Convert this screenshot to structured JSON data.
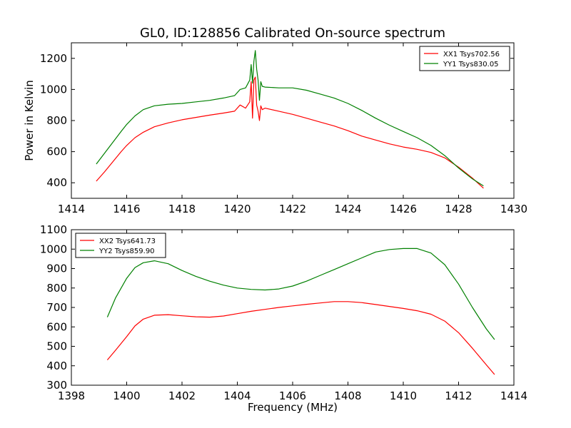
{
  "page_title": "GL0, ID:128856 Calibrated On-source spectrum",
  "xlabel": "Frequency (MHz)",
  "colors": {
    "red": "#ff0000",
    "green": "#008000"
  },
  "chart_data": [
    {
      "type": "line",
      "title": "GL0, ID:128856 Calibrated On-source spectrum",
      "xlabel": "",
      "ylabel": "Power in Kelvin",
      "xlim": [
        1414,
        1430
      ],
      "ylim": [
        300,
        1300
      ],
      "xticks": [
        1414,
        1416,
        1418,
        1420,
        1422,
        1424,
        1426,
        1428,
        1430
      ],
      "yticks": [
        400,
        600,
        800,
        1000,
        1200
      ],
      "legend_position": "top-right",
      "grid": false,
      "series": [
        {
          "name": "XX1 Tsys702.56",
          "color": "#ff0000",
          "x": [
            1414.9,
            1415.2,
            1415.5,
            1415.8,
            1416.0,
            1416.3,
            1416.6,
            1417.0,
            1417.5,
            1418.0,
            1418.5,
            1419.0,
            1419.5,
            1419.9,
            1420.1,
            1420.3,
            1420.45,
            1420.5,
            1420.55,
            1420.6,
            1420.65,
            1420.7,
            1420.75,
            1420.8,
            1420.85,
            1420.9,
            1421.0,
            1421.5,
            1422.0,
            1422.5,
            1423.0,
            1423.5,
            1424.0,
            1424.5,
            1425.0,
            1425.5,
            1426.0,
            1426.5,
            1427.0,
            1427.5,
            1428.0,
            1428.5,
            1428.9
          ],
          "y": [
            410,
            470,
            535,
            600,
            640,
            690,
            725,
            760,
            785,
            805,
            820,
            835,
            848,
            860,
            900,
            880,
            920,
            1050,
            815,
            1060,
            1080,
            900,
            860,
            800,
            895,
            870,
            880,
            860,
            840,
            815,
            790,
            765,
            735,
            700,
            675,
            650,
            630,
            615,
            595,
            560,
            500,
            430,
            365
          ]
        },
        {
          "name": "YY1 Tsys830.05",
          "color": "#008000",
          "x": [
            1414.9,
            1415.2,
            1415.5,
            1415.8,
            1416.0,
            1416.3,
            1416.6,
            1417.0,
            1417.5,
            1418.0,
            1418.5,
            1419.0,
            1419.5,
            1419.9,
            1420.1,
            1420.3,
            1420.45,
            1420.5,
            1420.55,
            1420.6,
            1420.65,
            1420.7,
            1420.75,
            1420.8,
            1420.85,
            1420.9,
            1421.0,
            1421.5,
            1422.0,
            1422.5,
            1423.0,
            1423.5,
            1424.0,
            1424.5,
            1425.0,
            1425.5,
            1426.0,
            1426.5,
            1427.0,
            1427.5,
            1428.0,
            1428.5,
            1428.9
          ],
          "y": [
            520,
            590,
            660,
            730,
            775,
            830,
            870,
            895,
            905,
            910,
            920,
            930,
            945,
            960,
            1000,
            1010,
            1060,
            1160,
            1040,
            1180,
            1250,
            1130,
            1060,
            930,
            1050,
            1020,
            1015,
            1010,
            1010,
            995,
            970,
            945,
            910,
            865,
            815,
            770,
            730,
            690,
            640,
            575,
            495,
            425,
            380
          ]
        }
      ]
    },
    {
      "type": "line",
      "title": "",
      "xlabel": "Frequency (MHz)",
      "ylabel": "",
      "xlim": [
        1398,
        1414
      ],
      "ylim": [
        300,
        1100
      ],
      "xticks": [
        1398,
        1400,
        1402,
        1404,
        1406,
        1408,
        1410,
        1412,
        1414
      ],
      "yticks": [
        300,
        400,
        500,
        600,
        700,
        800,
        900,
        1000,
        1100
      ],
      "legend_position": "top-left",
      "grid": false,
      "series": [
        {
          "name": "XX2 Tsys641.73",
          "color": "#ff0000",
          "x": [
            1399.3,
            1399.6,
            1400.0,
            1400.3,
            1400.6,
            1401.0,
            1401.5,
            1402.0,
            1402.5,
            1403.0,
            1403.5,
            1404.0,
            1404.5,
            1405.0,
            1405.5,
            1406.0,
            1406.5,
            1407.0,
            1407.5,
            1408.0,
            1408.5,
            1409.0,
            1409.5,
            1410.0,
            1410.5,
            1411.0,
            1411.5,
            1412.0,
            1412.5,
            1413.0,
            1413.3
          ],
          "y": [
            430,
            480,
            550,
            605,
            640,
            660,
            663,
            657,
            652,
            650,
            656,
            668,
            680,
            690,
            700,
            708,
            716,
            723,
            730,
            730,
            725,
            715,
            705,
            695,
            683,
            665,
            630,
            570,
            490,
            405,
            355
          ]
        },
        {
          "name": "YY2 Tsys859.90",
          "color": "#008000",
          "x": [
            1399.3,
            1399.6,
            1400.0,
            1400.3,
            1400.6,
            1401.0,
            1401.5,
            1402.0,
            1402.5,
            1403.0,
            1403.5,
            1404.0,
            1404.5,
            1405.0,
            1405.5,
            1406.0,
            1406.5,
            1407.0,
            1407.5,
            1408.0,
            1408.5,
            1409.0,
            1409.5,
            1410.0,
            1410.5,
            1411.0,
            1411.5,
            1412.0,
            1412.5,
            1413.0,
            1413.3
          ],
          "y": [
            650,
            750,
            850,
            905,
            930,
            940,
            925,
            890,
            860,
            835,
            815,
            800,
            793,
            790,
            795,
            810,
            835,
            865,
            895,
            925,
            955,
            985,
            998,
            1003,
            1003,
            980,
            920,
            820,
            700,
            590,
            535
          ]
        }
      ]
    }
  ]
}
